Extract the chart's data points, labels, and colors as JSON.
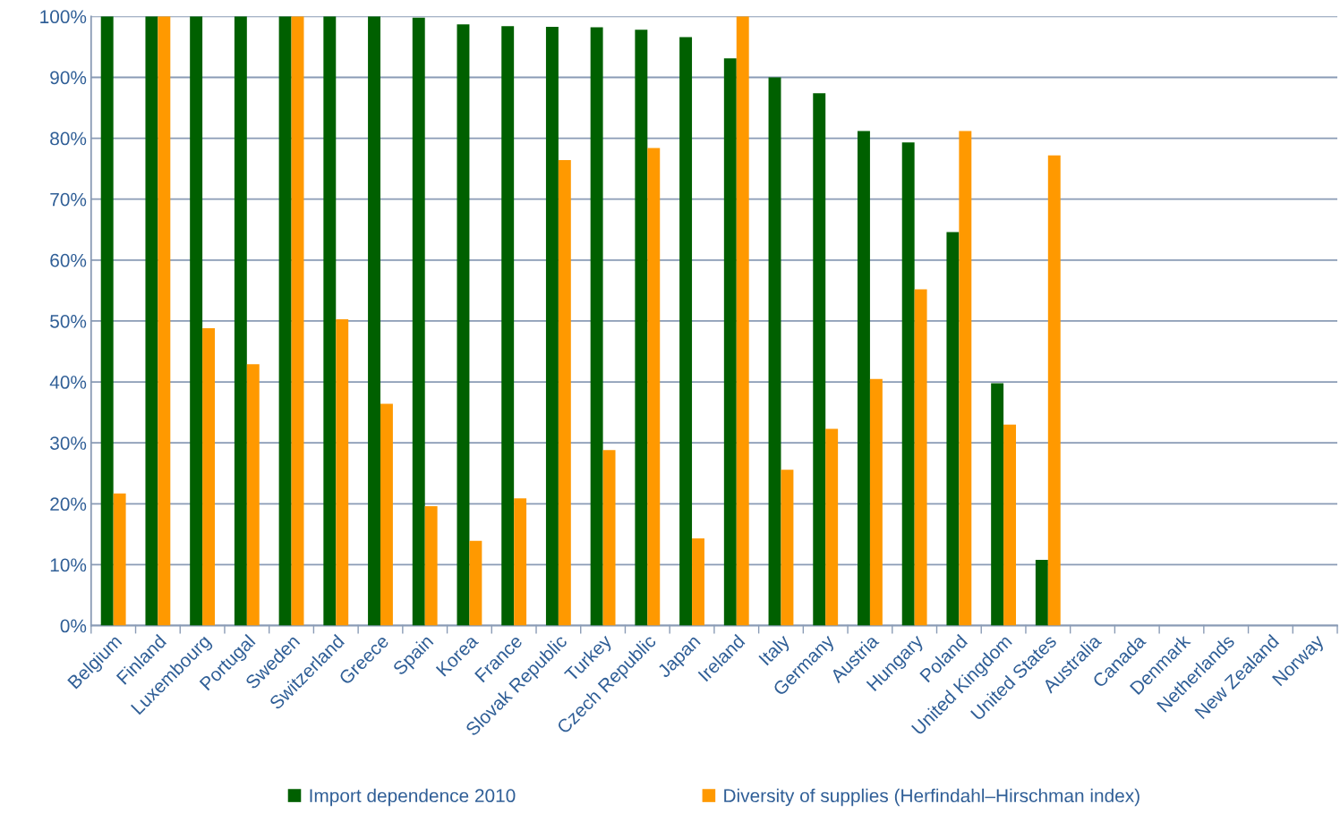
{
  "chart_data": {
    "type": "bar",
    "categories": [
      "Belgium",
      "Finland",
      "Luxembourg",
      "Portugal",
      "Sweden",
      "Switzerland",
      "Greece",
      "Spain",
      "Korea",
      "France",
      "Slovak Republic",
      "Turkey",
      "Czech Republic",
      "Japan",
      "Ireland",
      "Italy",
      "Germany",
      "Austria",
      "Hungary",
      "Poland",
      "United Kingdom",
      "United States",
      "Australia",
      "Canada",
      "Denmark",
      "Netherlands",
      "New Zealand",
      "Norway"
    ],
    "series": [
      {
        "name": "Import dependence 2010",
        "color": "#006000",
        "values": [
          100,
          100,
          100,
          100,
          100,
          100,
          100,
          99.8,
          98.7,
          98.4,
          98.3,
          98.2,
          97.8,
          96.6,
          93.1,
          90.0,
          87.4,
          81.2,
          79.3,
          64.6,
          39.8,
          10.8,
          null,
          null,
          null,
          null,
          null,
          null
        ]
      },
      {
        "name": "Diversity of supplies (Herfindahl–Hirschman index)",
        "color": "#ff9900",
        "values": [
          21.7,
          100,
          48.8,
          42.9,
          100,
          50.3,
          36.4,
          19.6,
          13.9,
          20.9,
          76.4,
          28.8,
          78.4,
          14.3,
          100,
          25.6,
          32.3,
          40.5,
          55.2,
          81.2,
          33.0,
          77.2,
          null,
          null,
          null,
          null,
          null,
          null
        ]
      }
    ],
    "ylim": [
      0,
      100
    ],
    "yticks": [
      {
        "value": 0,
        "label": "0%"
      },
      {
        "value": 10,
        "label": "10%"
      },
      {
        "value": 20,
        "label": "20%"
      },
      {
        "value": 30,
        "label": "30%"
      },
      {
        "value": 40,
        "label": "40%"
      },
      {
        "value": 50,
        "label": "50%"
      },
      {
        "value": 60,
        "label": "60%"
      },
      {
        "value": 70,
        "label": "70%"
      },
      {
        "value": 80,
        "label": "80%"
      },
      {
        "value": 90,
        "label": "90%"
      },
      {
        "value": 100,
        "label": "100%"
      }
    ],
    "grid": "y",
    "legend": "bottom"
  }
}
